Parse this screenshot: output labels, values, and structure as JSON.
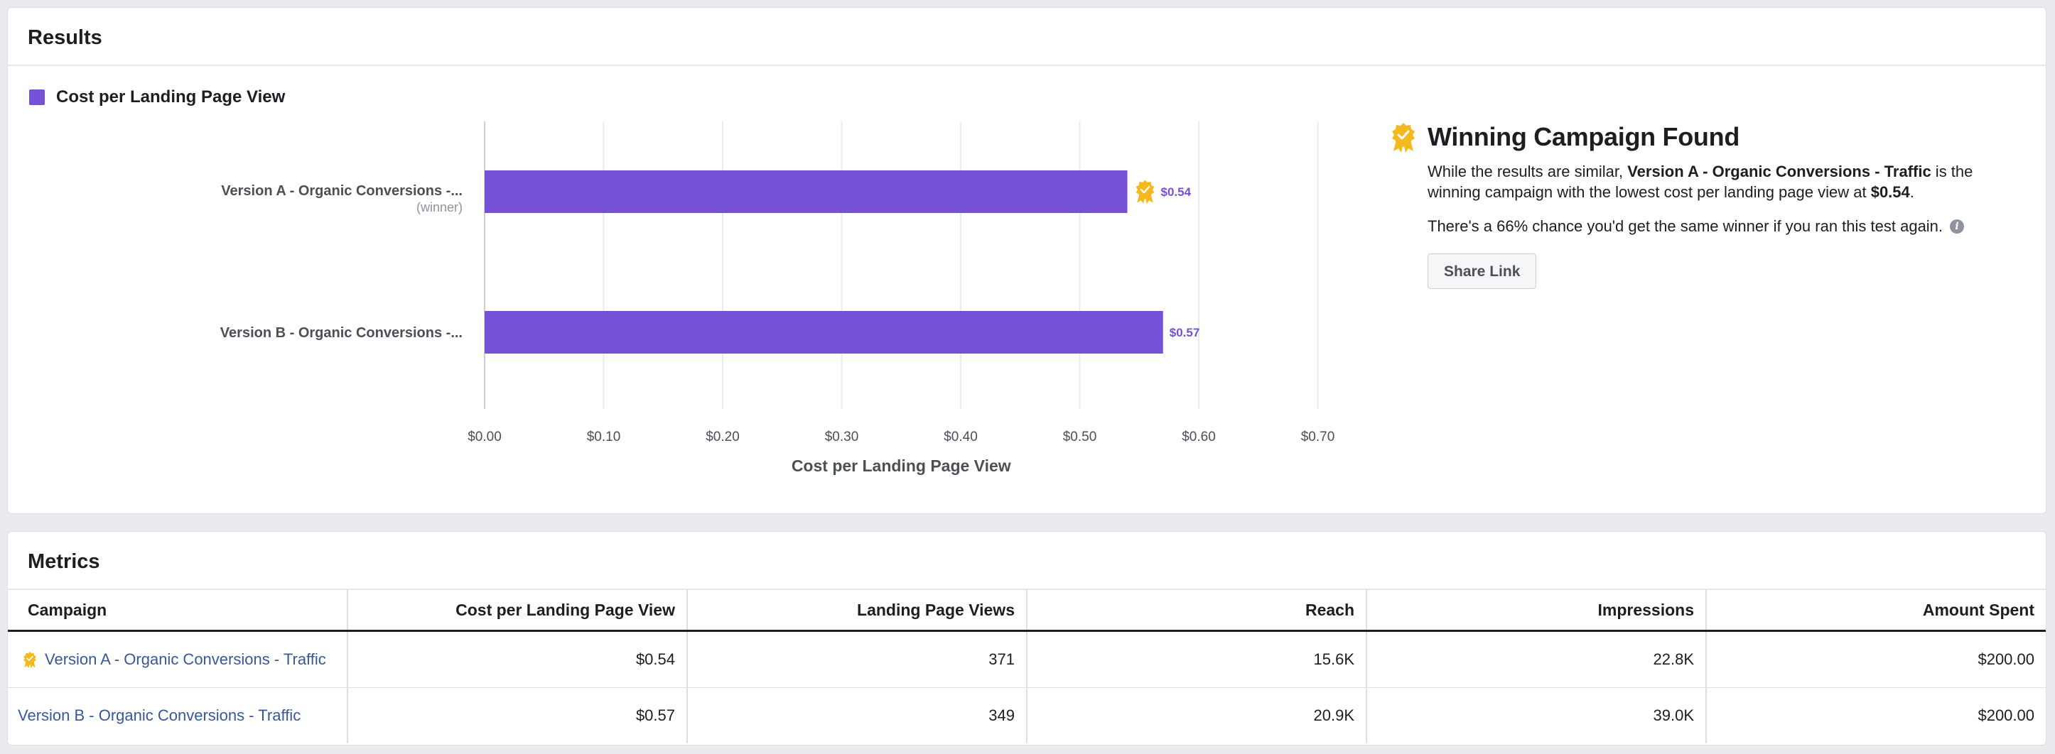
{
  "results": {
    "title": "Results",
    "legend_label": "Cost per Landing Page View",
    "bars": [
      {
        "name": "Version A - Organic Conversions -...",
        "sub": "(winner)",
        "value_label": "$0.54",
        "winner": true
      },
      {
        "name": "Version B - Organic Conversions -...",
        "sub": "",
        "value_label": "$0.57",
        "winner": false
      }
    ],
    "winner_panel": {
      "title": "Winning Campaign Found",
      "p1_prefix": "While the results are similar, ",
      "p1_bold_campaign": "Version A - Organic Conversions - Traffic",
      "p1_middle": " is the winning campaign with the lowest cost per landing page view at ",
      "p1_bold_value": "$0.54",
      "p1_suffix": ".",
      "p2": "There's a 66% chance you'd get the same winner if you ran this test again.",
      "share_label": "Share Link"
    }
  },
  "chart_data": {
    "type": "bar",
    "orientation": "horizontal",
    "categories": [
      "Version A - Organic Conversions - Traffic",
      "Version B - Organic Conversions - Traffic"
    ],
    "series": [
      {
        "name": "Cost per Landing Page View",
        "values": [
          0.54,
          0.57
        ]
      }
    ],
    "xlabel": "Cost per Landing Page View",
    "xlim": [
      0,
      0.7
    ],
    "xticks": [
      "$0.00",
      "$0.10",
      "$0.20",
      "$0.30",
      "$0.40",
      "$0.50",
      "$0.60",
      "$0.70"
    ],
    "grid": true,
    "color": "#7551d6",
    "legend_position": "top-left"
  },
  "metrics": {
    "title": "Metrics",
    "columns": [
      "Campaign",
      "Cost per Landing Page View",
      "Landing Page Views",
      "Reach",
      "Impressions",
      "Amount Spent"
    ],
    "rows": [
      {
        "campaign": "Version A - Organic Conversions - Traffic",
        "winner": true,
        "cells": [
          "$0.54",
          "371",
          "15.6K",
          "22.8K",
          "$200.00"
        ]
      },
      {
        "campaign": "Version B - Organic Conversions - Traffic",
        "winner": false,
        "cells": [
          "$0.57",
          "349",
          "20.9K",
          "39.0K",
          "$200.00"
        ]
      }
    ]
  },
  "colors": {
    "accent": "#7551d6",
    "award": "#f5b920",
    "link": "#385898"
  }
}
